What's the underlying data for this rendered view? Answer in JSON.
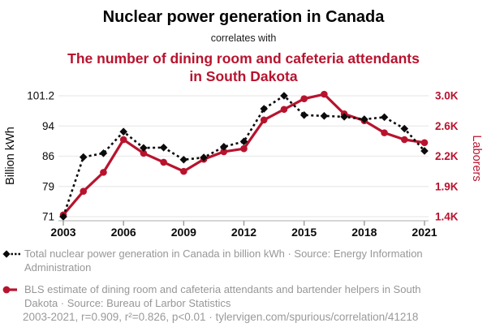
{
  "header": {
    "title": "Nuclear power generation in Canada",
    "connector": "correlates with",
    "subtitle": "The number of dining room and cafeteria attendants in South Dakota"
  },
  "colors": {
    "series_nuclear": "#0b0b0b",
    "series_attendants": "#b8132e",
    "grid": "#ededed",
    "axis_line": "#c9c9c9",
    "tick_mark": "#999999",
    "tick_text": "#0a0a0a",
    "legend_text": "#979797"
  },
  "chart_data": {
    "type": "line",
    "x": [
      2003,
      2004,
      2005,
      2006,
      2007,
      2008,
      2009,
      2010,
      2011,
      2012,
      2013,
      2014,
      2015,
      2016,
      2017,
      2018,
      2019,
      2020,
      2021
    ],
    "x_tick_labels": [
      "2003",
      "2006",
      "2009",
      "2012",
      "2015",
      "2018",
      "2021"
    ],
    "series": [
      {
        "name": "Total nuclear power generation in Canada",
        "axis": "left",
        "marker": "circle",
        "line_style": "solid",
        "key": "attendants",
        "values_note": "see attendants series below"
      },
      {
        "name": "BLS estimate of dining room and cafeteria attendants and bartender helpers in South Dakota",
        "axis": "right",
        "marker": "diamond",
        "line_style": "dashed",
        "key": "nuclear",
        "values_note": "see nuclear series below"
      }
    ],
    "nuclear_values": [
      71.0,
      85.8,
      86.8,
      92.5,
      88.2,
      88.3,
      85.2,
      85.7,
      88.5,
      89.9,
      98.1,
      101.2,
      96.6,
      96.4,
      96.2,
      95.6,
      96.1,
      93.3,
      87.4
    ],
    "attendants_values": [
      1430,
      1820,
      2040,
      2420,
      2240,
      2140,
      2050,
      2170,
      2260,
      2300,
      2680,
      2820,
      2960,
      3020,
      2760,
      2670,
      2510,
      2420,
      2380
    ],
    "left_axis": {
      "label": "Billion kWh",
      "tick_labels": [
        "101.2",
        "94",
        "86",
        "79",
        "71"
      ],
      "tick_values": [
        101.2,
        94,
        86,
        79,
        71
      ]
    },
    "right_axis": {
      "label": "Laborers",
      "tick_labels": [
        "3.0K",
        "2.6K",
        "2.2K",
        "1.9K",
        "1.4K"
      ],
      "tick_values": [
        3000,
        2600,
        2200,
        1900,
        1400
      ]
    },
    "grid": true,
    "legend_position": "bottom"
  },
  "legend": {
    "items": [
      {
        "marker": "black-diamond-dashed-line",
        "text": "Total nuclear power generation in Canada in billion kWh · Source: Energy Information Administration"
      },
      {
        "marker": "red-circle-solid-line",
        "text": "BLS estimate of dining room and cafeteria attendants and bartender helpers in South Dakota · Source: Bureau of Larbor Statistics"
      }
    ]
  },
  "footer": "2003-2021, r=0.909, r²=0.826, p<0.01 · tylervigen.com/spurious/correlation/41218"
}
